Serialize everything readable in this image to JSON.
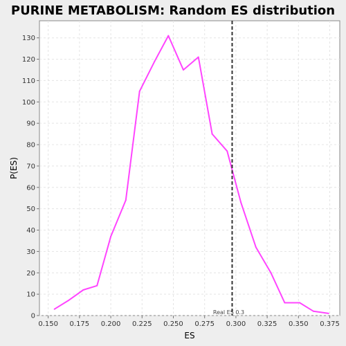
{
  "chart_data": {
    "type": "line",
    "title": "PURINE METABOLISM: Random ES distribution",
    "xlabel": "ES",
    "ylabel": "P(ES)",
    "xlim": [
      0.143,
      0.383
    ],
    "ylim": [
      0,
      138
    ],
    "xticks": [
      "0.150",
      "0.175",
      "0.200",
      "0.225",
      "0.250",
      "0.275",
      "0.300",
      "0.325",
      "0.350",
      "0.375"
    ],
    "yticks": [
      "0",
      "10",
      "20",
      "30",
      "40",
      "50",
      "60",
      "70",
      "80",
      "90",
      "100",
      "110",
      "120",
      "130"
    ],
    "grid": true,
    "series": [
      {
        "color": "#ff44ff",
        "x": [
          0.155,
          0.166,
          0.178,
          0.189,
          0.2,
          0.212,
          0.223,
          0.235,
          0.246,
          0.258,
          0.27,
          0.281,
          0.293,
          0.304,
          0.316,
          0.328,
          0.339,
          0.351,
          0.362,
          0.374
        ],
        "y": [
          3,
          7,
          12,
          14,
          37,
          54,
          105,
          119,
          131,
          115,
          121,
          85,
          77,
          53,
          32,
          20,
          6,
          6,
          2,
          1
        ]
      }
    ],
    "marker": {
      "x": 0.297,
      "label": "Real ES 0.3"
    }
  }
}
